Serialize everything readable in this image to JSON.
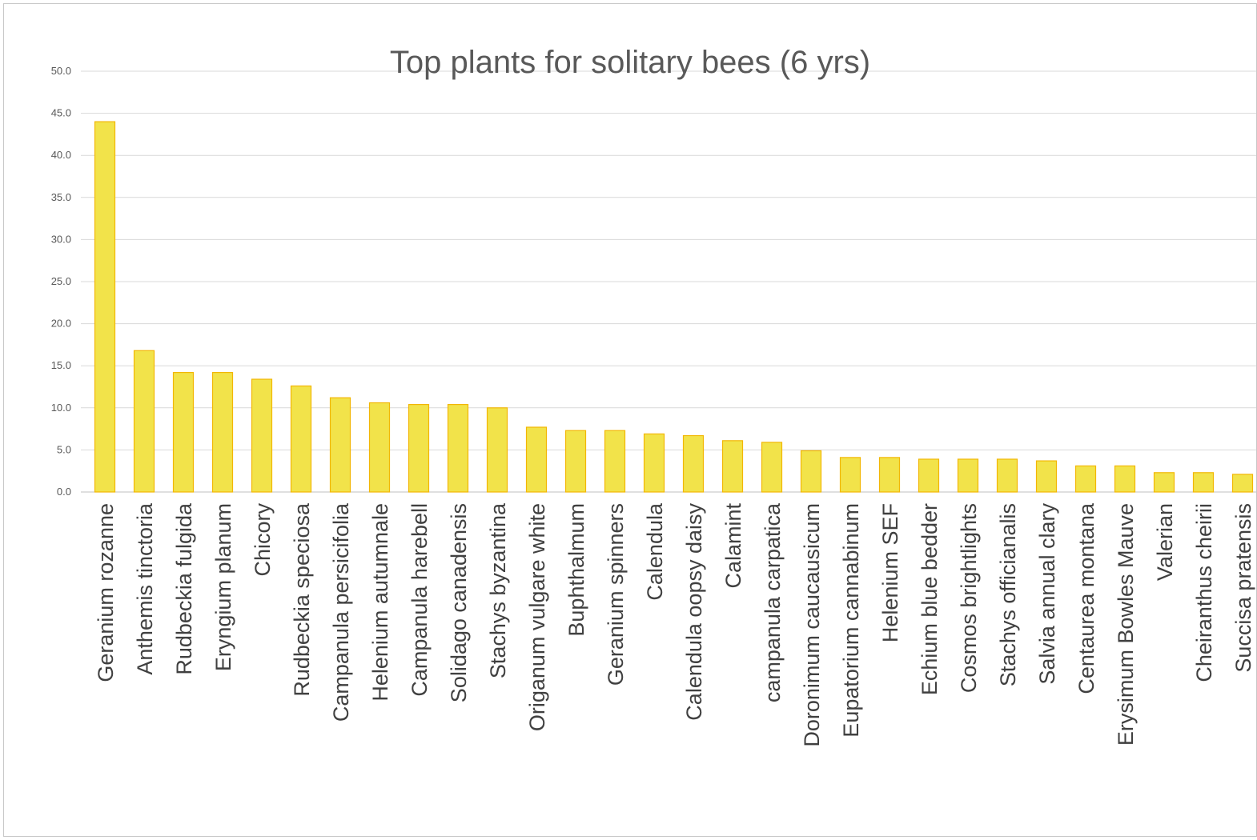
{
  "colors": {
    "bar_fill": "#f2e34a",
    "bar_stroke": "#f2b705",
    "grid": "#d9d9d9",
    "text": "#595959"
  },
  "chart_data": {
    "type": "bar",
    "title": "Top plants for solitary bees (6 yrs)",
    "xlabel": "",
    "ylabel": "",
    "ylim": [
      0,
      50
    ],
    "yticks": [
      "0.0",
      "5.0",
      "10.0",
      "15.0",
      "20.0",
      "25.0",
      "30.0",
      "35.0",
      "40.0",
      "45.0",
      "50.0"
    ],
    "grid": true,
    "legend": "none",
    "categories": [
      "Geranium rozanne",
      "Anthemis tinctoria",
      "Rudbeckia fulgida",
      "Eryngium planum",
      "Chicory",
      "Rudbeckia speciosa",
      "Campanula persicifolia",
      "Helenium autumnale",
      "Campanula harebell",
      "Solidago canadensis",
      "Stachys byzantina",
      "Origanum vulgare white",
      "Buphthalmum",
      "Geranium spinners",
      "Calendula",
      "Calendula oopsy daisy",
      "Calamint",
      "campanula carpatica",
      "Doronimum caucausicum",
      "Eupatorium cannabinum",
      "Helenium SEF",
      "Echium blue bedder",
      "Cosmos brightlights",
      "Stachys officianalis",
      "Salvia annual clary",
      "Centaurea montana",
      "Erysimum Bowles Mauve",
      "Valerian",
      "Cheiranthus cheirii",
      "Succisa pratensis"
    ],
    "values": [
      44.0,
      16.8,
      14.2,
      14.2,
      13.4,
      12.6,
      11.2,
      10.6,
      10.4,
      10.4,
      10.0,
      7.7,
      7.3,
      7.3,
      6.9,
      6.7,
      6.1,
      5.9,
      4.9,
      4.1,
      4.1,
      3.9,
      3.9,
      3.9,
      3.7,
      3.1,
      3.1,
      2.3,
      2.3,
      2.1
    ]
  }
}
